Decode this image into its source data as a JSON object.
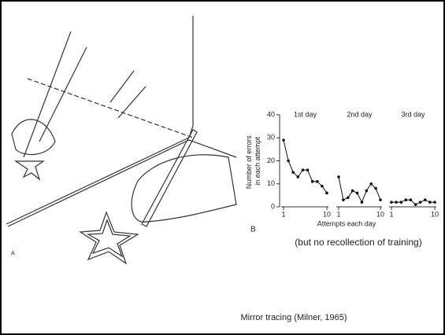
{
  "chart_data": {
    "type": "line",
    "y_label": [
      "Number of errors",
      "in each attempt"
    ],
    "x_label": "Attempts each day",
    "x": [
      1,
      2,
      3,
      4,
      5,
      6,
      7,
      8,
      9,
      10
    ],
    "xlim": [
      1,
      10
    ],
    "xticks": [
      1,
      10
    ],
    "ylim": [
      0,
      40
    ],
    "yticks": [
      0,
      10,
      20,
      30,
      40
    ],
    "series": [
      {
        "name": "1st day",
        "color": "#111",
        "values": [
          29,
          20,
          15,
          13,
          16,
          16,
          11,
          11,
          9,
          6
        ]
      },
      {
        "name": "2nd day",
        "color": "#111",
        "values": [
          13,
          3,
          4,
          7,
          6,
          2,
          7,
          10,
          8,
          3
        ]
      },
      {
        "name": "3rd day",
        "color": "#111",
        "values": [
          2,
          2,
          2,
          3,
          3,
          1,
          2,
          3,
          2,
          2
        ]
      }
    ]
  },
  "annotations": {
    "panel_a": "A",
    "panel_b": "B",
    "caption": "(but no recollection of training)",
    "source": "Mirror tracing (Milner, 1965)"
  }
}
